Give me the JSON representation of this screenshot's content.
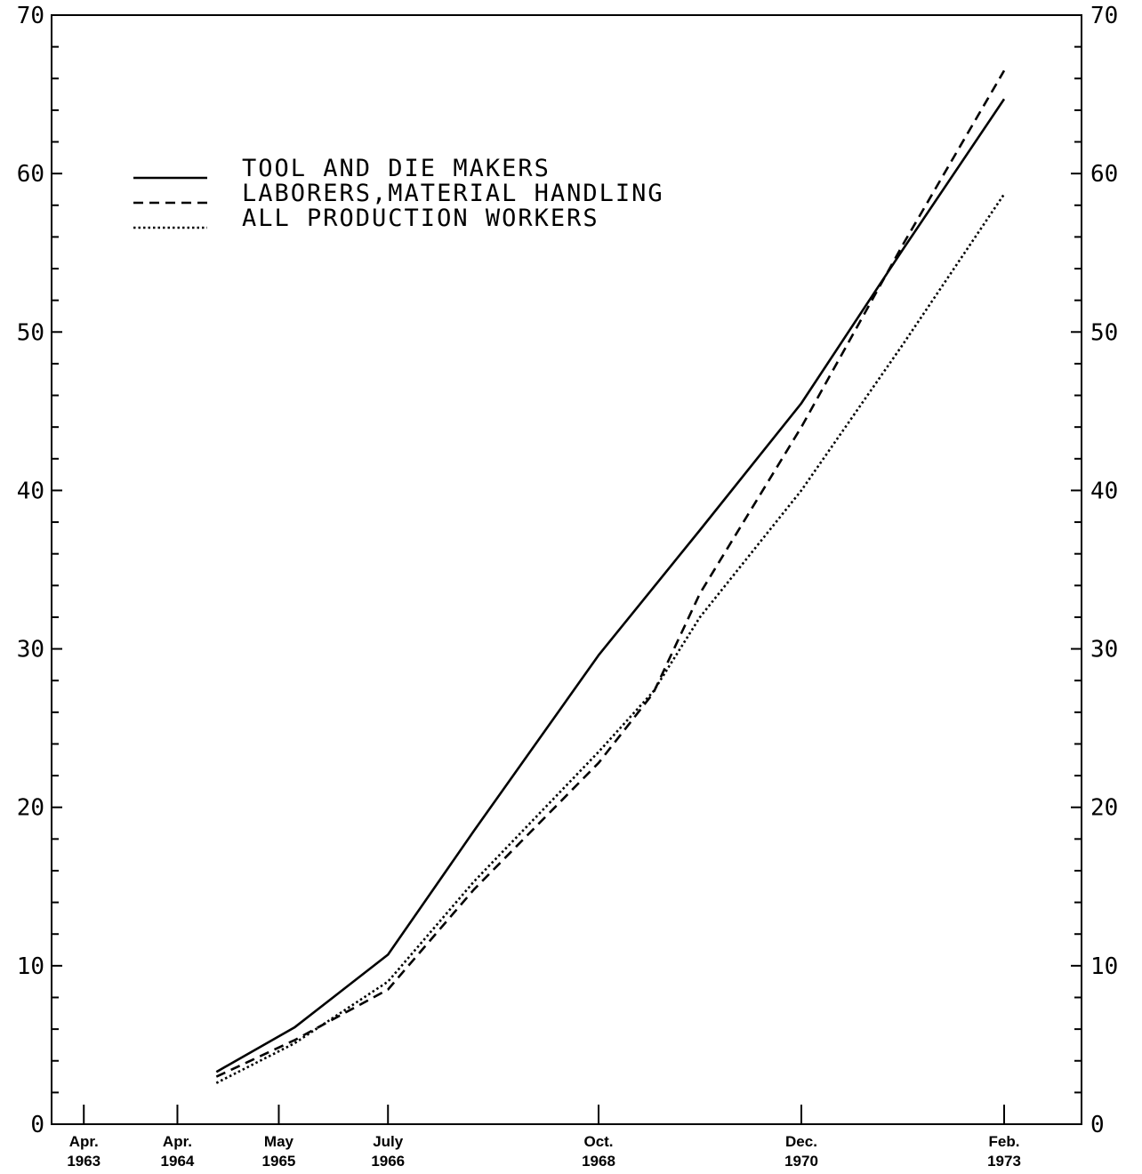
{
  "chart_data": {
    "type": "line",
    "title": "",
    "xlabel": "",
    "ylabel": "",
    "ylim": [
      0,
      70
    ],
    "yticks": [
      "0",
      "10",
      "20",
      "30",
      "40",
      "50",
      "60",
      "70"
    ],
    "ytick_values": [
      0,
      10,
      20,
      30,
      40,
      50,
      60,
      70
    ],
    "y_axis_both_sides": true,
    "grid": false,
    "legend_position": "upper-left",
    "xticks": [
      {
        "line1": "Apr.",
        "line2": "1963",
        "date": "1963-04"
      },
      {
        "line1": "Apr.",
        "line2": "1964",
        "date": "1964-04"
      },
      {
        "line1": "May",
        "line2": "1965",
        "date": "1965-05"
      },
      {
        "line1": "July",
        "line2": "1966",
        "date": "1966-07"
      },
      {
        "line1": "Oct.",
        "line2": "1968",
        "date": "1968-10"
      },
      {
        "line1": "Dec.",
        "line2": "1970",
        "date": "1970-12"
      },
      {
        "line1": "Feb.",
        "line2": "1973",
        "date": "1973-02"
      }
    ],
    "series": [
      {
        "name": "TOOL AND DIE MAKERS",
        "style": "solid",
        "points": [
          {
            "x": "1964-09",
            "y": 3.3
          },
          {
            "x": "1965-07",
            "y": 6.1
          },
          {
            "x": "1966-07",
            "y": 10.7
          },
          {
            "x": "1967-06",
            "y": 18.5
          },
          {
            "x": "1968-10",
            "y": 29.6
          },
          {
            "x": "1969-11",
            "y": 37.5
          },
          {
            "x": "1970-12",
            "y": 45.5
          },
          {
            "x": "1972-01",
            "y": 55.2
          },
          {
            "x": "1973-02",
            "y": 64.7
          }
        ]
      },
      {
        "name": "LABORERS,MATERIAL HANDLING",
        "style": "dashed",
        "points": [
          {
            "x": "1964-09",
            "y": 3.0
          },
          {
            "x": "1965-07",
            "y": 5.3
          },
          {
            "x": "1966-07",
            "y": 8.5
          },
          {
            "x": "1967-06",
            "y": 14.8
          },
          {
            "x": "1968-10",
            "y": 22.8
          },
          {
            "x": "1969-05",
            "y": 27.2
          },
          {
            "x": "1969-11",
            "y": 33.5
          },
          {
            "x": "1970-12",
            "y": 44.0
          },
          {
            "x": "1972-01",
            "y": 55.5
          },
          {
            "x": "1973-02",
            "y": 66.5
          }
        ]
      },
      {
        "name": "ALL PRODUCTION WORKERS",
        "style": "dotted",
        "points": [
          {
            "x": "1964-09",
            "y": 2.6
          },
          {
            "x": "1965-07",
            "y": 5.1
          },
          {
            "x": "1966-07",
            "y": 9.0
          },
          {
            "x": "1967-06",
            "y": 15.3
          },
          {
            "x": "1968-10",
            "y": 23.5
          },
          {
            "x": "1969-05",
            "y": 27.3
          },
          {
            "x": "1969-11",
            "y": 32.0
          },
          {
            "x": "1970-12",
            "y": 40.0
          },
          {
            "x": "1972-01",
            "y": 49.2
          },
          {
            "x": "1973-02",
            "y": 58.7
          }
        ]
      }
    ]
  }
}
